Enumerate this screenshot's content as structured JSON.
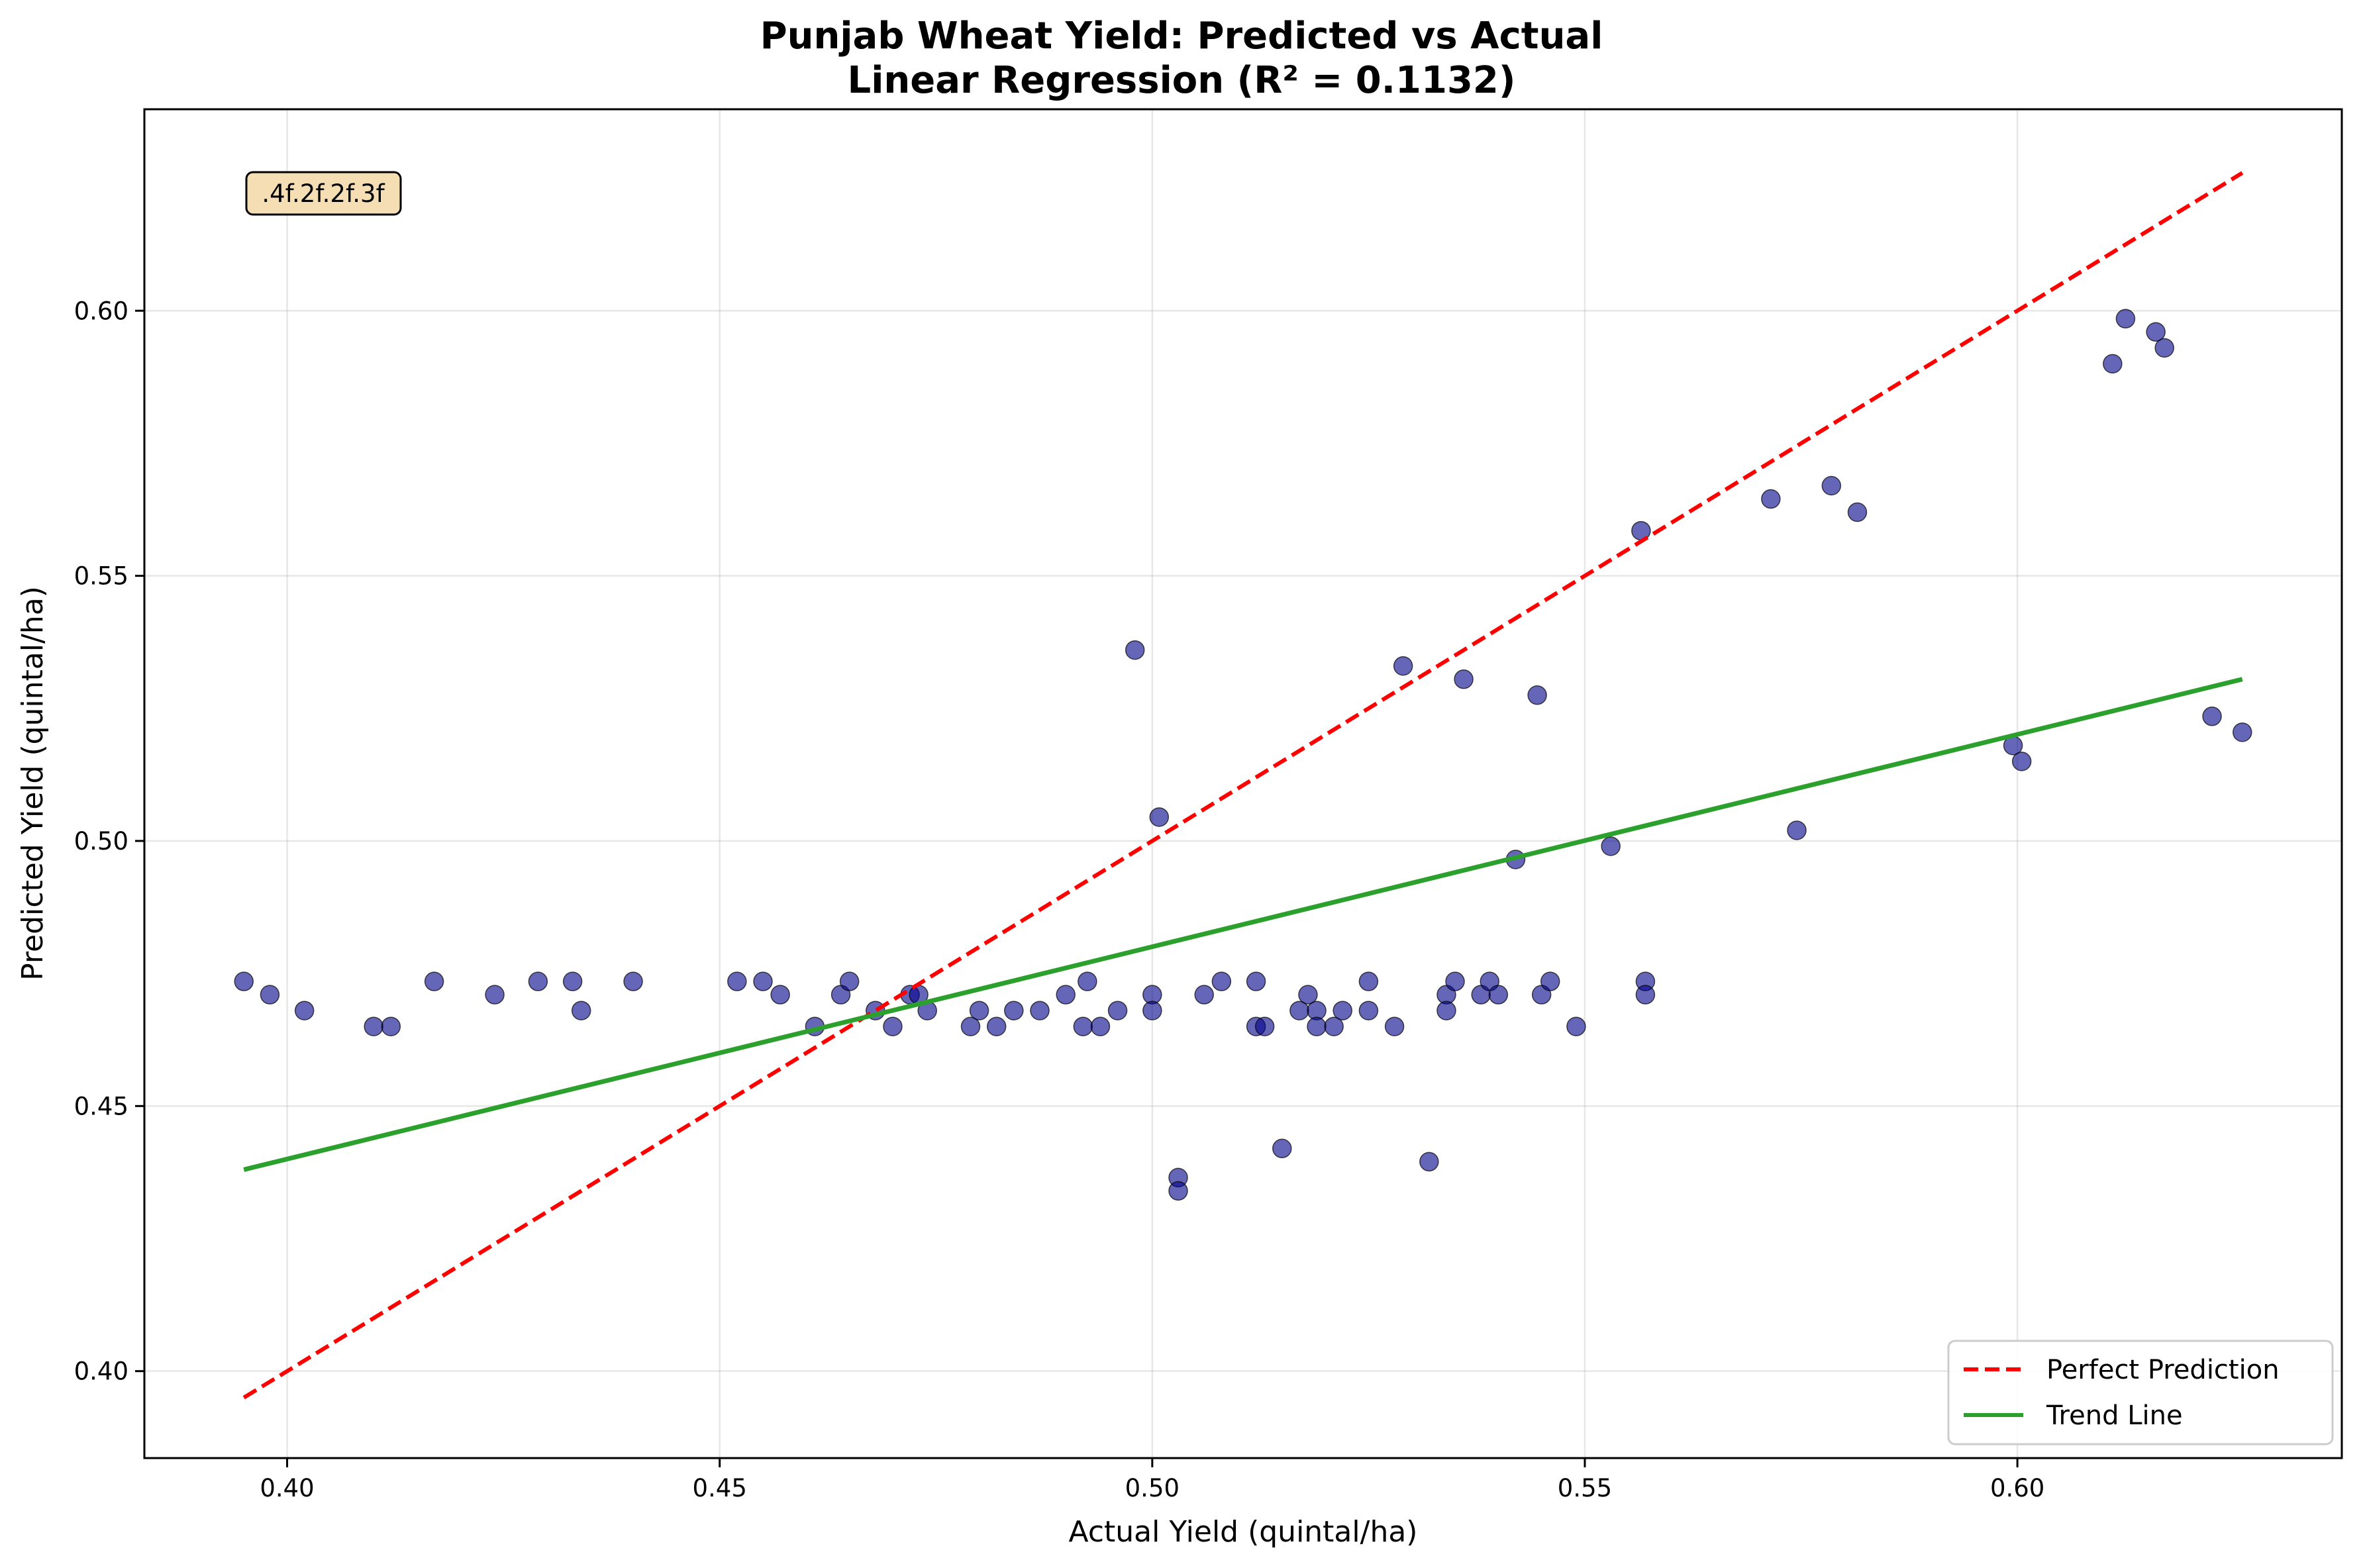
{
  "chart_data": {
    "type": "scatter",
    "title": "Punjab Wheat Yield: Predicted vs Actual",
    "subtitle": "Linear Regression (R² = 0.1132)",
    "xlabel": "Actual Yield (quintal/ha)",
    "ylabel": "Predicted Yield (quintal/ha)",
    "xlim": [
      0.3835,
      0.6375
    ],
    "ylim": [
      0.3836,
      0.638
    ],
    "xticks": [
      0.4,
      0.45,
      0.5,
      0.55,
      0.6
    ],
    "yticks": [
      0.4,
      0.45,
      0.5,
      0.55,
      0.6
    ],
    "xtick_labels": [
      "0.40",
      "0.45",
      "0.50",
      "0.55",
      "0.60"
    ],
    "ytick_labels": [
      "0.40",
      "0.45",
      "0.50",
      "0.55",
      "0.60"
    ],
    "grid": true,
    "legend_position": "bottom-right",
    "annotation": ".4f.2f.2f.3f",
    "colors": {
      "points": "#00008b",
      "perfect_line": "#ff0000",
      "trend_line": "#2ca02c",
      "annotation_bg": "#f5deb3"
    },
    "series": [
      {
        "name": "Perfect Prediction",
        "kind": "line",
        "style": "dashed",
        "x": [
          0.395,
          0.626
        ],
        "y": [
          0.395,
          0.626
        ]
      },
      {
        "name": "Trend Line",
        "kind": "line",
        "style": "solid",
        "x": [
          0.395,
          0.626
        ],
        "y": [
          0.438,
          0.5305
        ]
      },
      {
        "kind": "scatter",
        "points": [
          [
            0.395,
            0.4735
          ],
          [
            0.398,
            0.471
          ],
          [
            0.402,
            0.468
          ],
          [
            0.41,
            0.465
          ],
          [
            0.412,
            0.465
          ],
          [
            0.417,
            0.4735
          ],
          [
            0.424,
            0.471
          ],
          [
            0.429,
            0.4735
          ],
          [
            0.433,
            0.4735
          ],
          [
            0.434,
            0.468
          ],
          [
            0.44,
            0.4735
          ],
          [
            0.452,
            0.4735
          ],
          [
            0.455,
            0.4735
          ],
          [
            0.457,
            0.471
          ],
          [
            0.461,
            0.465
          ],
          [
            0.464,
            0.471
          ],
          [
            0.465,
            0.4735
          ],
          [
            0.468,
            0.468
          ],
          [
            0.47,
            0.465
          ],
          [
            0.472,
            0.471
          ],
          [
            0.473,
            0.471
          ],
          [
            0.474,
            0.468
          ],
          [
            0.479,
            0.465
          ],
          [
            0.48,
            0.468
          ],
          [
            0.482,
            0.465
          ],
          [
            0.484,
            0.468
          ],
          [
            0.487,
            0.468
          ],
          [
            0.49,
            0.471
          ],
          [
            0.492,
            0.465
          ],
          [
            0.4925,
            0.4735
          ],
          [
            0.494,
            0.465
          ],
          [
            0.496,
            0.468
          ],
          [
            0.498,
            0.536
          ],
          [
            0.5,
            0.471
          ],
          [
            0.5,
            0.468
          ],
          [
            0.5008,
            0.5045
          ],
          [
            0.503,
            0.4365
          ],
          [
            0.503,
            0.434
          ],
          [
            0.506,
            0.471
          ],
          [
            0.508,
            0.4735
          ],
          [
            0.512,
            0.4735
          ],
          [
            0.512,
            0.465
          ],
          [
            0.513,
            0.465
          ],
          [
            0.515,
            0.442
          ],
          [
            0.517,
            0.468
          ],
          [
            0.518,
            0.471
          ],
          [
            0.519,
            0.468
          ],
          [
            0.519,
            0.465
          ],
          [
            0.521,
            0.465
          ],
          [
            0.522,
            0.468
          ],
          [
            0.525,
            0.4735
          ],
          [
            0.525,
            0.468
          ],
          [
            0.528,
            0.465
          ],
          [
            0.529,
            0.533
          ],
          [
            0.532,
            0.4395
          ],
          [
            0.534,
            0.471
          ],
          [
            0.534,
            0.468
          ],
          [
            0.535,
            0.4735
          ],
          [
            0.536,
            0.5305
          ],
          [
            0.538,
            0.471
          ],
          [
            0.539,
            0.4735
          ],
          [
            0.54,
            0.471
          ],
          [
            0.542,
            0.4965
          ],
          [
            0.5445,
            0.5275
          ],
          [
            0.545,
            0.471
          ],
          [
            0.546,
            0.4735
          ],
          [
            0.549,
            0.465
          ],
          [
            0.553,
            0.499
          ],
          [
            0.5565,
            0.5585
          ],
          [
            0.557,
            0.4735
          ],
          [
            0.557,
            0.471
          ],
          [
            0.5715,
            0.5645
          ],
          [
            0.5745,
            0.502
          ],
          [
            0.5785,
            0.567
          ],
          [
            0.5815,
            0.562
          ],
          [
            0.5995,
            0.518
          ],
          [
            0.6005,
            0.515
          ],
          [
            0.611,
            0.59
          ],
          [
            0.6125,
            0.5985
          ],
          [
            0.616,
            0.596
          ],
          [
            0.617,
            0.593
          ],
          [
            0.6225,
            0.5235
          ],
          [
            0.626,
            0.5205
          ]
        ]
      }
    ]
  }
}
